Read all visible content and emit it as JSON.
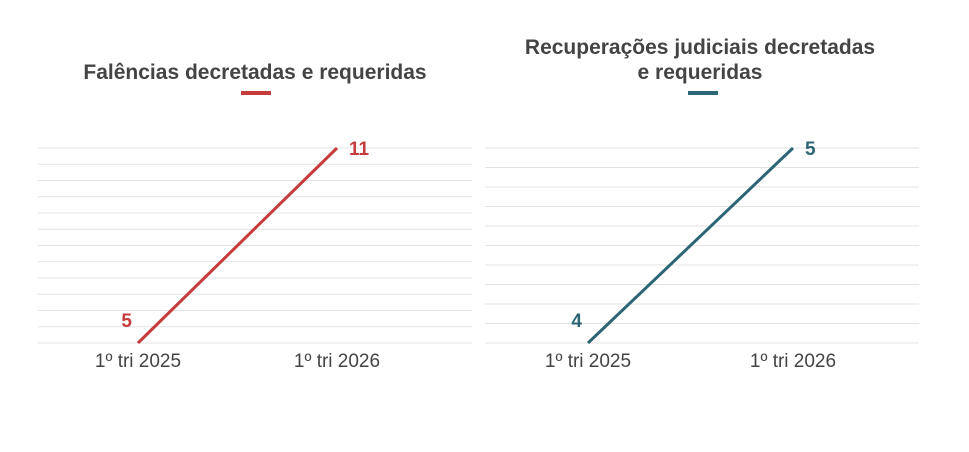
{
  "chart_data": [
    {
      "type": "line",
      "title": "Falências decretadas e requeridas",
      "color": "#c63b3b",
      "categories": [
        "1º tri 2025",
        "1º tri 2026"
      ],
      "values": [
        5,
        11
      ],
      "data_labels": [
        "5",
        "11"
      ],
      "ylim": [
        5,
        11
      ],
      "grid": true,
      "xlabel": "",
      "ylabel": ""
    },
    {
      "type": "line",
      "title": "Recuperações judiciais decretadas e requeridas",
      "title_lines": [
        "Recuperações judiciais decretadas",
        "e requeridas"
      ],
      "color": "#2c6674",
      "categories": [
        "1º tri 2025",
        "1º tri 2026"
      ],
      "values": [
        4,
        5
      ],
      "data_labels": [
        "4",
        "5"
      ],
      "ylim": [
        4,
        5
      ],
      "grid": true,
      "xlabel": "",
      "ylabel": ""
    }
  ]
}
